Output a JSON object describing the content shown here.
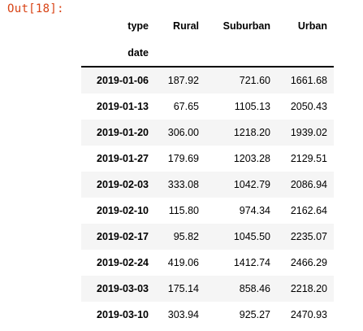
{
  "prompt": "Out[18]:",
  "table": {
    "columns_name": "type",
    "index_name": "date",
    "columns": [
      "Rural",
      "Suburban",
      "Urban"
    ],
    "rows": [
      {
        "date": "2019-01-06",
        "values": [
          "187.92",
          "721.60",
          "1661.68"
        ]
      },
      {
        "date": "2019-01-13",
        "values": [
          "67.65",
          "1105.13",
          "2050.43"
        ]
      },
      {
        "date": "2019-01-20",
        "values": [
          "306.00",
          "1218.20",
          "1939.02"
        ]
      },
      {
        "date": "2019-01-27",
        "values": [
          "179.69",
          "1203.28",
          "2129.51"
        ]
      },
      {
        "date": "2019-02-03",
        "values": [
          "333.08",
          "1042.79",
          "2086.94"
        ]
      },
      {
        "date": "2019-02-10",
        "values": [
          "115.80",
          "974.34",
          "2162.64"
        ]
      },
      {
        "date": "2019-02-17",
        "values": [
          "95.82",
          "1045.50",
          "2235.07"
        ]
      },
      {
        "date": "2019-02-24",
        "values": [
          "419.06",
          "1412.74",
          "2466.29"
        ]
      },
      {
        "date": "2019-03-03",
        "values": [
          "175.14",
          "858.46",
          "2218.20"
        ]
      },
      {
        "date": "2019-03-10",
        "values": [
          "303.94",
          "925.27",
          "2470.93"
        ]
      }
    ]
  },
  "colors": {
    "prompt": "#d84315",
    "striped_row": "#f5f5f5",
    "header_rule": "#000000"
  }
}
